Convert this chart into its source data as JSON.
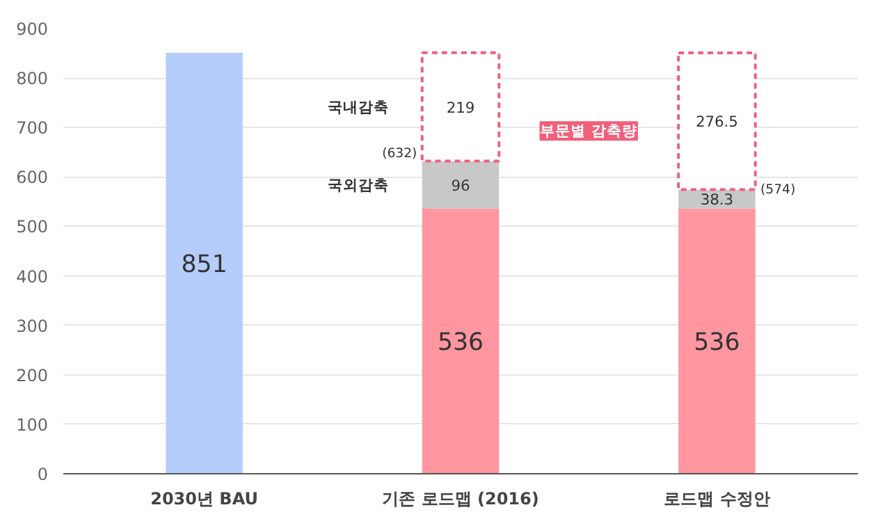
{
  "chart_data": {
    "type": "bar",
    "stacked": true,
    "categories": [
      "2030년 BAU",
      "기존 로드맵 (2016)",
      "로드맵 수정안"
    ],
    "series": [
      {
        "colors": [
          "#b4cdfb",
          "#ff96a0",
          "#ff96a0"
        ],
        "values": [
          851,
          536,
          536
        ]
      },
      {
        "name": "국외감축",
        "color": "#c8c8c8",
        "values": [
          null,
          96,
          38.3
        ]
      },
      {
        "name": "국내감축",
        "color": "#ffffff",
        "line_style": "dashed",
        "values": [
          null,
          219,
          276.5
        ]
      }
    ],
    "ylim": [
      0,
      900
    ],
    "yticks": [
      0,
      100,
      200,
      300,
      400,
      500,
      600,
      700,
      800,
      900
    ],
    "grid": "y",
    "data_labels": true,
    "annotations": [
      "(632)",
      "(574)",
      "부문별 감축량"
    ]
  }
}
